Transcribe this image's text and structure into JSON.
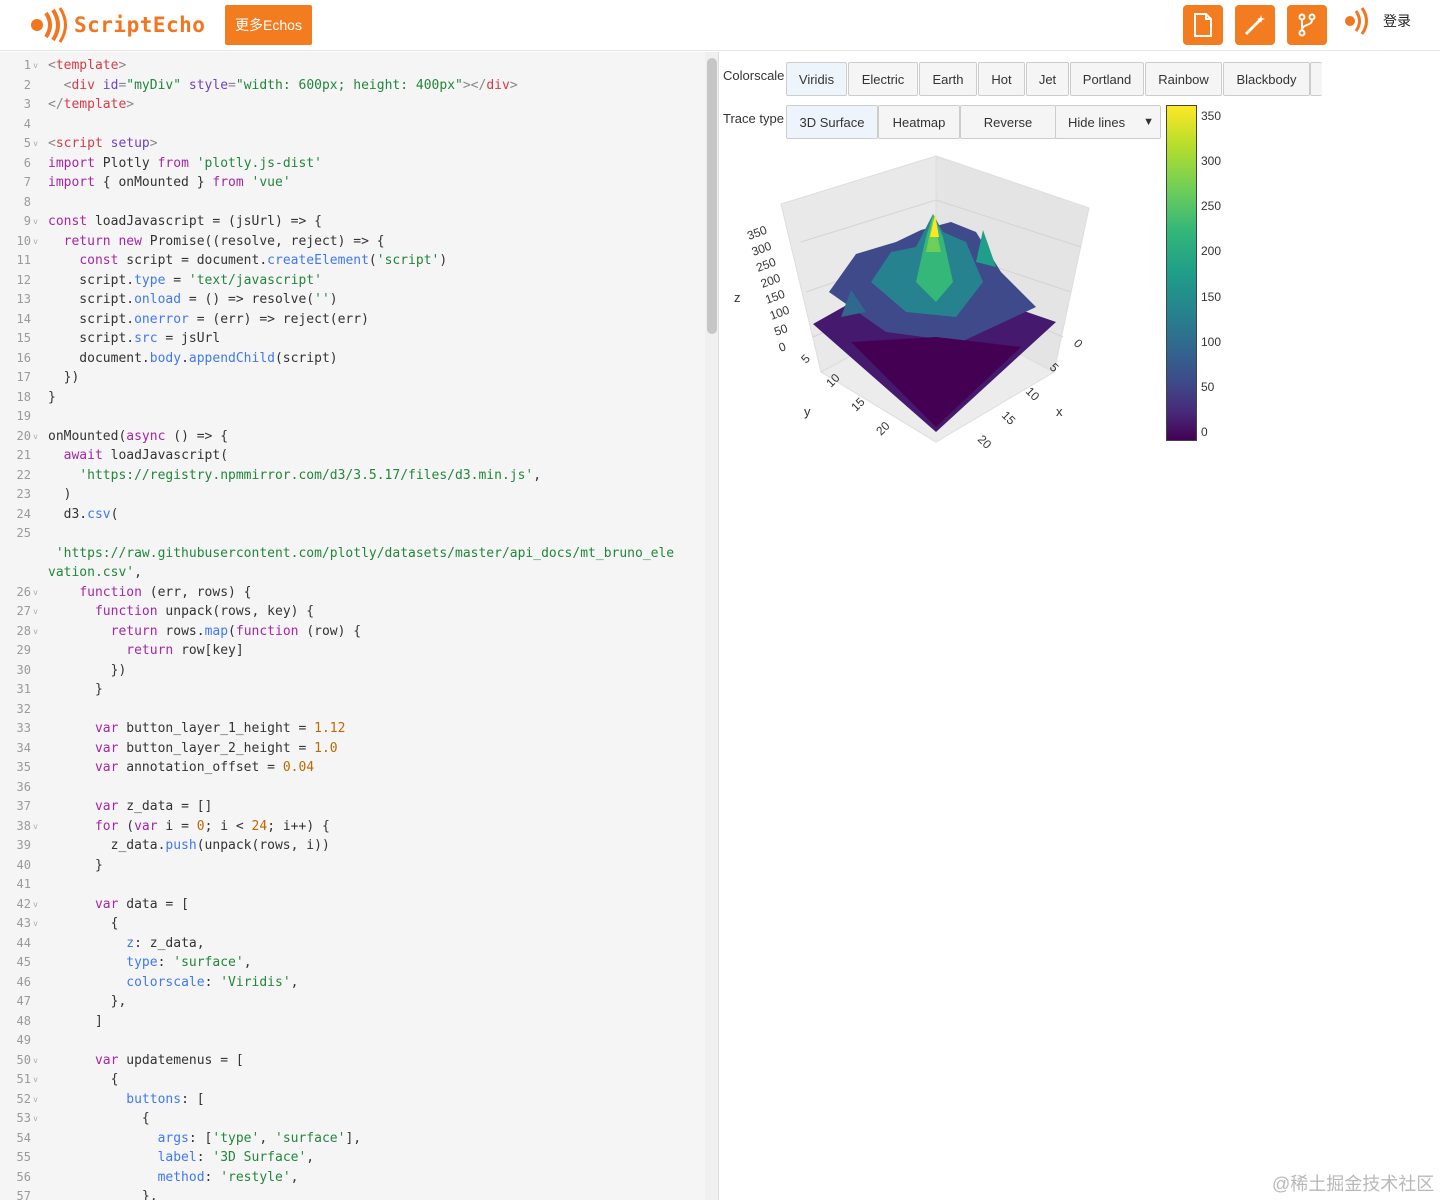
{
  "header": {
    "brand": "ScriptEcho",
    "more_button": "更多Echos",
    "login": "登录",
    "icons": [
      "file-icon",
      "magic-wand-icon",
      "branch-icon"
    ],
    "accent": "#f47c20"
  },
  "editor": {
    "lines": [
      {
        "n": "1",
        "f": "v"
      },
      {
        "n": "2"
      },
      {
        "n": "3"
      },
      {
        "n": "4"
      },
      {
        "n": "5",
        "f": "v"
      },
      {
        "n": "6"
      },
      {
        "n": "7"
      },
      {
        "n": "8"
      },
      {
        "n": "9",
        "f": "v"
      },
      {
        "n": "10",
        "f": "v"
      },
      {
        "n": "11"
      },
      {
        "n": "12"
      },
      {
        "n": "13"
      },
      {
        "n": "14"
      },
      {
        "n": "15"
      },
      {
        "n": "16"
      },
      {
        "n": "17"
      },
      {
        "n": "18"
      },
      {
        "n": "19"
      },
      {
        "n": "20",
        "f": "v"
      },
      {
        "n": "21"
      },
      {
        "n": "22"
      },
      {
        "n": "23"
      },
      {
        "n": "24"
      },
      {
        "n": "25"
      },
      {
        "n": ""
      },
      {
        "n": ""
      },
      {
        "n": "26",
        "f": "v"
      },
      {
        "n": "27",
        "f": "v"
      },
      {
        "n": "28",
        "f": "v"
      },
      {
        "n": "29"
      },
      {
        "n": "30"
      },
      {
        "n": "31"
      },
      {
        "n": "32"
      },
      {
        "n": "33"
      },
      {
        "n": "34"
      },
      {
        "n": "35"
      },
      {
        "n": "36"
      },
      {
        "n": "37"
      },
      {
        "n": "38",
        "f": "v"
      },
      {
        "n": "39"
      },
      {
        "n": "40"
      },
      {
        "n": "41"
      },
      {
        "n": "42",
        "f": "v"
      },
      {
        "n": "43",
        "f": "v"
      },
      {
        "n": "44"
      },
      {
        "n": "45"
      },
      {
        "n": "46"
      },
      {
        "n": "47"
      },
      {
        "n": "48"
      },
      {
        "n": "49"
      },
      {
        "n": "50",
        "f": "v"
      },
      {
        "n": "51",
        "f": "v"
      },
      {
        "n": "52",
        "f": "v"
      },
      {
        "n": "53",
        "f": "v"
      },
      {
        "n": "54"
      },
      {
        "n": "55"
      },
      {
        "n": "56"
      },
      {
        "n": "57"
      }
    ],
    "code": [
      [
        [
          "pn",
          "<"
        ],
        [
          "tg",
          "template"
        ],
        [
          "pn",
          ">"
        ]
      ],
      [
        [
          "",
          "  "
        ],
        [
          "pn",
          "<"
        ],
        [
          "tg",
          "div"
        ],
        [
          "",
          ""
        ],
        [
          "at",
          " id"
        ],
        [
          "pn",
          "="
        ],
        [
          "st",
          "\"myDiv\""
        ],
        [
          "at",
          " style"
        ],
        [
          "pn",
          "="
        ],
        [
          "st",
          "\"width: 600px; height: 400px\""
        ],
        [
          "pn",
          "></"
        ],
        [
          "tg",
          "div"
        ],
        [
          "pn",
          ">"
        ]
      ],
      [
        [
          "pn",
          "</"
        ],
        [
          "tg",
          "template"
        ],
        [
          "pn",
          ">"
        ]
      ],
      [],
      [
        [
          "pn",
          "<"
        ],
        [
          "tg",
          "script"
        ],
        [
          "at",
          " setup"
        ],
        [
          "pn",
          ">"
        ]
      ],
      [
        [
          "kw",
          "import"
        ],
        [
          "",
          " Plotly "
        ],
        [
          "kw",
          "from"
        ],
        [
          "",
          " "
        ],
        [
          "st",
          "'plotly.js-dist'"
        ]
      ],
      [
        [
          "kw",
          "import"
        ],
        [
          "",
          " { onMounted } "
        ],
        [
          "kw",
          "from"
        ],
        [
          "",
          " "
        ],
        [
          "st",
          "'vue'"
        ]
      ],
      [],
      [
        [
          "kw",
          "const"
        ],
        [
          "",
          " loadJavascript = (jsUrl) => {"
        ]
      ],
      [
        [
          "",
          "  "
        ],
        [
          "kw",
          "return"
        ],
        [
          "",
          " "
        ],
        [
          "kw",
          "new"
        ],
        [
          "",
          " Promise((resolve, reject) => {"
        ]
      ],
      [
        [
          "",
          "    "
        ],
        [
          "kw",
          "const"
        ],
        [
          "",
          " script = document."
        ],
        [
          "pr",
          "createElement"
        ],
        [
          "",
          "("
        ],
        [
          "st",
          "'script'"
        ],
        [
          "",
          ")"
        ]
      ],
      [
        [
          "",
          "    script."
        ],
        [
          "pr",
          "type"
        ],
        [
          "",
          " = "
        ],
        [
          "st",
          "'text/javascript'"
        ]
      ],
      [
        [
          "",
          "    script."
        ],
        [
          "pr",
          "onload"
        ],
        [
          "",
          " = () => resolve("
        ],
        [
          "st",
          "''"
        ],
        [
          "",
          ")"
        ]
      ],
      [
        [
          "",
          "    script."
        ],
        [
          "pr",
          "onerror"
        ],
        [
          "",
          " = (err) => reject(err)"
        ]
      ],
      [
        [
          "",
          "    script."
        ],
        [
          "pr",
          "src"
        ],
        [
          "",
          " = jsUrl"
        ]
      ],
      [
        [
          "",
          "    document."
        ],
        [
          "pr",
          "body"
        ],
        [
          "",
          "."
        ],
        [
          "pr",
          "appendChild"
        ],
        [
          "",
          "(script)"
        ]
      ],
      [
        [
          "",
          "  })"
        ]
      ],
      [
        [
          "",
          "}"
        ]
      ],
      [],
      [
        [
          "",
          "onMounted("
        ],
        [
          "kw",
          "async"
        ],
        [
          "",
          " () => {"
        ]
      ],
      [
        [
          "",
          "  "
        ],
        [
          "kw",
          "await"
        ],
        [
          "",
          " loadJavascript("
        ]
      ],
      [
        [
          "",
          "    "
        ],
        [
          "st",
          "'https://registry.npmmirror.com/d3/3.5.17/files/d3.min.js'"
        ],
        [
          "",
          ","
        ]
      ],
      [
        [
          "",
          "  )"
        ]
      ],
      [
        [
          "",
          "  d3."
        ],
        [
          "pr",
          "csv"
        ],
        [
          "",
          "("
        ]
      ],
      [],
      [
        [
          "st",
          " 'https://raw.githubusercontent.com/plotly/datasets/master/api_docs/mt_bruno_ele"
        ]
      ],
      [
        [
          "st",
          "vation.csv'"
        ],
        [
          "",
          ","
        ]
      ],
      [
        [
          "",
          "    "
        ],
        [
          "kw",
          "function"
        ],
        [
          "",
          " (err, rows) {"
        ]
      ],
      [
        [
          "",
          "      "
        ],
        [
          "kw",
          "function"
        ],
        [
          "",
          " unpack(rows, key) {"
        ]
      ],
      [
        [
          "",
          "        "
        ],
        [
          "kw",
          "return"
        ],
        [
          "",
          " rows."
        ],
        [
          "pr",
          "map"
        ],
        [
          "",
          "("
        ],
        [
          "kw",
          "function"
        ],
        [
          "",
          " (row) {"
        ]
      ],
      [
        [
          "",
          "          "
        ],
        [
          "kw",
          "return"
        ],
        [
          "",
          " row[key]"
        ]
      ],
      [
        [
          "",
          "        })"
        ]
      ],
      [
        [
          "",
          "      }"
        ]
      ],
      [],
      [
        [
          "",
          "      "
        ],
        [
          "kw",
          "var"
        ],
        [
          "",
          " button_layer_1_height = "
        ],
        [
          "nm",
          "1.12"
        ]
      ],
      [
        [
          "",
          "      "
        ],
        [
          "kw",
          "var"
        ],
        [
          "",
          " button_layer_2_height = "
        ],
        [
          "nm",
          "1.0"
        ]
      ],
      [
        [
          "",
          "      "
        ],
        [
          "kw",
          "var"
        ],
        [
          "",
          " annotation_offset = "
        ],
        [
          "nm",
          "0.04"
        ]
      ],
      [],
      [
        [
          "",
          "      "
        ],
        [
          "kw",
          "var"
        ],
        [
          "",
          " z_data = []"
        ]
      ],
      [
        [
          "",
          "      "
        ],
        [
          "kw",
          "for"
        ],
        [
          "",
          " ("
        ],
        [
          "kw",
          "var"
        ],
        [
          "",
          " i = "
        ],
        [
          "nm",
          "0"
        ],
        [
          "",
          "; i < "
        ],
        [
          "nm",
          "24"
        ],
        [
          "",
          "; i++) {"
        ]
      ],
      [
        [
          "",
          "        z_data."
        ],
        [
          "pr",
          "push"
        ],
        [
          "",
          "(unpack(rows, i))"
        ]
      ],
      [
        [
          "",
          "      }"
        ]
      ],
      [],
      [
        [
          "",
          "      "
        ],
        [
          "kw",
          "var"
        ],
        [
          "",
          " data = ["
        ]
      ],
      [
        [
          "",
          "        {"
        ]
      ],
      [
        [
          "",
          "          "
        ],
        [
          "pr",
          "z"
        ],
        [
          "",
          ": z_data,"
        ]
      ],
      [
        [
          "",
          "          "
        ],
        [
          "pr",
          "type"
        ],
        [
          "",
          ": "
        ],
        [
          "st",
          "'surface'"
        ],
        [
          "",
          ","
        ]
      ],
      [
        [
          "",
          "          "
        ],
        [
          "pr",
          "colorscale"
        ],
        [
          "",
          ": "
        ],
        [
          "st",
          "'Viridis'"
        ],
        [
          "",
          ","
        ]
      ],
      [
        [
          "",
          "        },"
        ]
      ],
      [
        [
          "",
          "      ]"
        ]
      ],
      [],
      [
        [
          "",
          "      "
        ],
        [
          "kw",
          "var"
        ],
        [
          "",
          " updatemenus = ["
        ]
      ],
      [
        [
          "",
          "        {"
        ]
      ],
      [
        [
          "",
          "          "
        ],
        [
          "pr",
          "buttons"
        ],
        [
          "",
          ": ["
        ]
      ],
      [
        [
          "",
          "            {"
        ]
      ],
      [
        [
          "",
          "              "
        ],
        [
          "pr",
          "args"
        ],
        [
          "",
          ": ["
        ],
        [
          "st",
          "'type'"
        ],
        [
          "",
          ", "
        ],
        [
          "st",
          "'surface'"
        ],
        [
          "",
          "],"
        ]
      ],
      [
        [
          "",
          "              "
        ],
        [
          "pr",
          "label"
        ],
        [
          "",
          ": "
        ],
        [
          "st",
          "'3D Surface'"
        ],
        [
          "",
          ","
        ]
      ],
      [
        [
          "",
          "              "
        ],
        [
          "pr",
          "method"
        ],
        [
          "",
          ": "
        ],
        [
          "st",
          "'restyle'"
        ],
        [
          "",
          ","
        ]
      ],
      [
        [
          "",
          "            },"
        ]
      ]
    ]
  },
  "preview": {
    "colorscale_label": "Colorscale",
    "colorscale_buttons": [
      "Viridis",
      "Electric",
      "Earth",
      "Hot",
      "Jet",
      "Portland",
      "Rainbow",
      "Blackbody"
    ],
    "trace_label": "Trace type",
    "trace_buttons": [
      "3D Surface",
      "Heatmap"
    ],
    "reverse_button": "Reverse",
    "lines_dropdown": "Hide lines",
    "colorbar_ticks": [
      "350",
      "300",
      "250",
      "200",
      "150",
      "100",
      "50",
      "0"
    ],
    "z_ticks": [
      "350",
      "300",
      "250",
      "200",
      "150",
      "100",
      "50",
      "0"
    ],
    "x_ticks": [
      "0",
      "5",
      "10",
      "15",
      "20"
    ],
    "y_ticks": [
      "5",
      "10",
      "15",
      "20"
    ],
    "axis_x": "x",
    "axis_y": "y",
    "axis_z": "z"
  },
  "chart_data": {
    "type": "surface",
    "colorscale": "Viridis",
    "z_range": [
      0,
      350
    ],
    "x_range": [
      0,
      23
    ],
    "y_range": [
      0,
      23
    ]
  },
  "watermark": "@稀土掘金技术社区"
}
